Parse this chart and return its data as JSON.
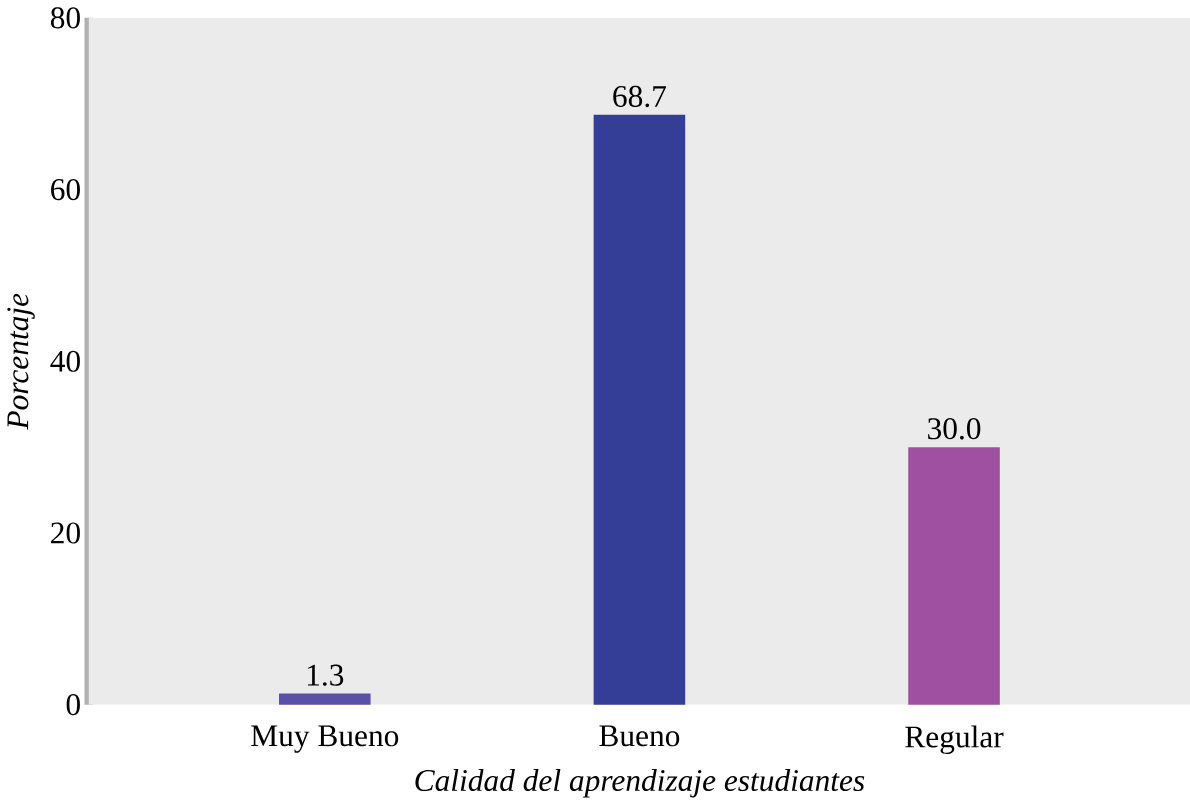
{
  "chart_data": {
    "type": "bar",
    "xlabel": "Calidad del aprendizaje estudiantes",
    "ylabel": "Porcentaje",
    "categories": [
      "Muy Bueno",
      "Bueno",
      "Regular"
    ],
    "values": [
      1.3,
      68.7,
      30.0
    ],
    "value_labels": [
      "1.3",
      "68.7",
      "30.0"
    ],
    "colors": [
      "#5a50a8",
      "#343e96",
      "#a050a0"
    ],
    "ylim": [
      0,
      80
    ],
    "yticks": [
      0,
      20,
      40,
      60,
      80
    ]
  }
}
